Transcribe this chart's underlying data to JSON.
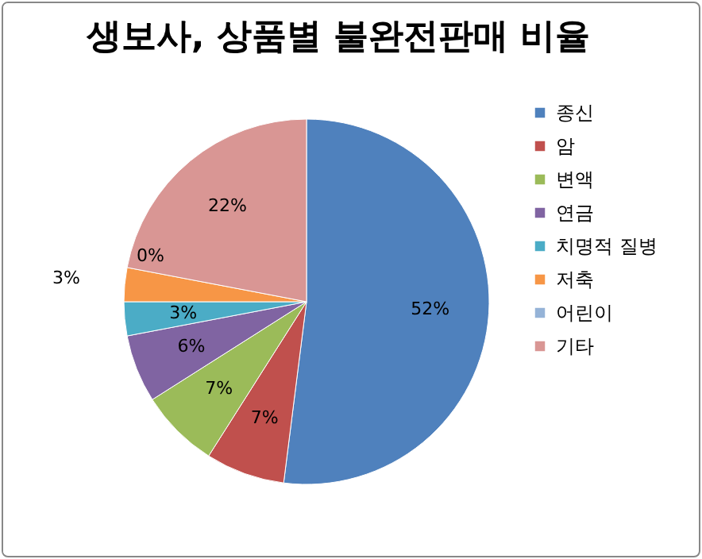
{
  "chart_data": {
    "type": "pie",
    "title": "생보사, 상품별 불완전판매 비율",
    "categories": [
      "종신",
      "암",
      "변액",
      "연금",
      "치명적 질병",
      "저축",
      "어린이",
      "기타"
    ],
    "values": [
      52,
      7,
      7,
      6,
      3,
      3,
      0,
      22
    ],
    "value_labels": [
      "52%",
      "7%",
      "7%",
      "6%",
      "3%",
      "3%",
      "0%",
      "22%"
    ],
    "colors": [
      "#4f81bd",
      "#c0504d",
      "#9bbb59",
      "#8064a2",
      "#4bacc6",
      "#f79646",
      "#95b3d7",
      "#d99694"
    ],
    "legend": "right"
  }
}
